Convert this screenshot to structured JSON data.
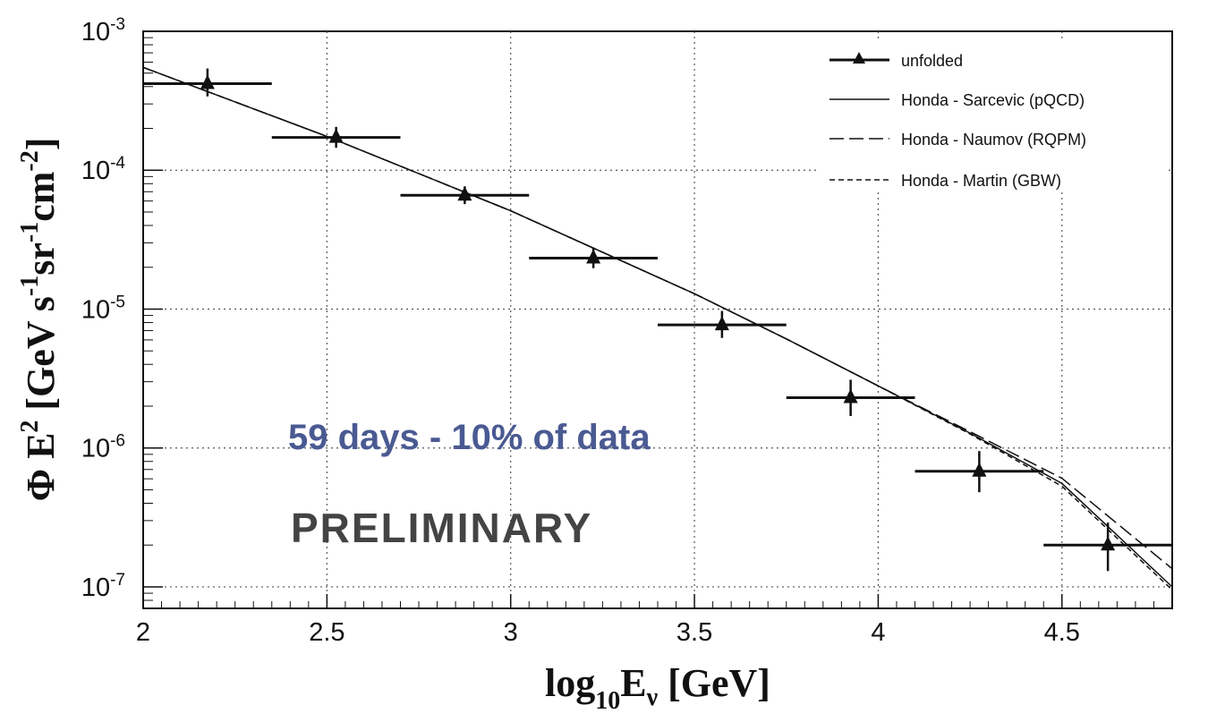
{
  "chart_data": {
    "type": "scatter",
    "title": "",
    "xlabel": {
      "base": "log",
      "sub1": "10",
      "mid": "E",
      "sub2": "ν",
      "unit": " [GeV]"
    },
    "ylabel": {
      "phi": "Φ E",
      "sup2": "2",
      "open": " [GeV s",
      "sup1": "-1",
      "sr": "sr",
      "sup3": "-1",
      "cm": "cm",
      "sup4": "-2",
      "close": "]"
    },
    "xlim": [
      2.0,
      4.8
    ],
    "ylim": [
      7e-08,
      0.001
    ],
    "yscale": "log",
    "grid": true,
    "x_ticks": [
      "2",
      "2.5",
      "3",
      "3.5",
      "4",
      "4.5"
    ],
    "y_ticks": [
      {
        "base": "10",
        "exp": "-3",
        "value": 0.001
      },
      {
        "base": "10",
        "exp": "-4",
        "value": 0.0001
      },
      {
        "base": "10",
        "exp": "-5",
        "value": 1e-05
      },
      {
        "base": "10",
        "exp": "-6",
        "value": 1e-06
      },
      {
        "base": "10",
        "exp": "-7",
        "value": 1e-07
      }
    ],
    "series": [
      {
        "name": "unfolded",
        "style": "points-with-errorbars",
        "points": [
          {
            "x": 2.175,
            "y": 0.00042,
            "xlo": 2.0,
            "xhi": 2.35,
            "ylo": 0.00034,
            "yhi": 0.00054
          },
          {
            "x": 2.525,
            "y": 0.000172,
            "xlo": 2.35,
            "xhi": 2.7,
            "ylo": 0.000145,
            "yhi": 0.000205
          },
          {
            "x": 2.875,
            "y": 6.6e-05,
            "xlo": 2.7,
            "xhi": 3.05,
            "ylo": 5.7e-05,
            "yhi": 7.65e-05
          },
          {
            "x": 3.225,
            "y": 2.33e-05,
            "xlo": 3.05,
            "xhi": 3.4,
            "ylo": 1.97e-05,
            "yhi": 2.78e-05
          },
          {
            "x": 3.575,
            "y": 7.7e-06,
            "xlo": 3.4,
            "xhi": 3.75,
            "ylo": 6.2e-06,
            "yhi": 9.7e-06
          },
          {
            "x": 3.925,
            "y": 2.3e-06,
            "xlo": 3.75,
            "xhi": 4.1,
            "ylo": 1.7e-06,
            "yhi": 3.1e-06
          },
          {
            "x": 4.275,
            "y": 6.8e-07,
            "xlo": 4.1,
            "xhi": 4.45,
            "ylo": 4.8e-07,
            "yhi": 9.5e-07
          },
          {
            "x": 4.625,
            "y": 2e-07,
            "xlo": 4.45,
            "xhi": 4.8,
            "ylo": 1.3e-07,
            "yhi": 2.9e-07
          }
        ]
      },
      {
        "name": "Honda - Sarcevic (pQCD)",
        "style": "solid",
        "x": [
          2.0,
          2.5,
          3.0,
          3.5,
          3.75,
          4.0,
          4.25,
          4.5,
          4.8
        ],
        "y": [
          0.00055,
          0.000175,
          5.1e-05,
          1.29e-05,
          6.1e-06,
          2.8e-06,
          1.28e-06,
          5.55e-07,
          1e-07
        ]
      },
      {
        "name": "Honda - Naumov (RQPM)",
        "style": "long-dash",
        "x": [
          2.0,
          2.5,
          3.0,
          3.5,
          3.75,
          4.0,
          4.25,
          4.5,
          4.8
        ],
        "y": [
          0.00055,
          0.000175,
          5.1e-05,
          1.29e-05,
          6.1e-06,
          2.8e-06,
          1.31e-06,
          6.05e-07,
          1.35e-07
        ]
      },
      {
        "name": "Honda - Martin (GBW)",
        "style": "short-dash",
        "x": [
          2.0,
          2.5,
          3.0,
          3.5,
          3.75,
          4.0,
          4.25,
          4.5,
          4.8
        ],
        "y": [
          0.00055,
          0.000175,
          5.1e-05,
          1.29e-05,
          6.1e-06,
          2.8e-06,
          1.26e-06,
          5.3e-07,
          9.5e-08
        ]
      }
    ],
    "legend": {
      "position": "top-right",
      "entries": [
        "unfolded",
        "Honda - Sarcevic (pQCD)",
        "Honda - Naumov (RQPM)",
        "Honda - Martin (GBW)"
      ]
    },
    "annotations": {
      "note": "59 days - 10% of data",
      "stamp": "PRELIMINARY"
    },
    "colors": {
      "note": "#4a5a92",
      "stamp": "#444444",
      "ink": "#111111",
      "grid": "#555555"
    }
  }
}
